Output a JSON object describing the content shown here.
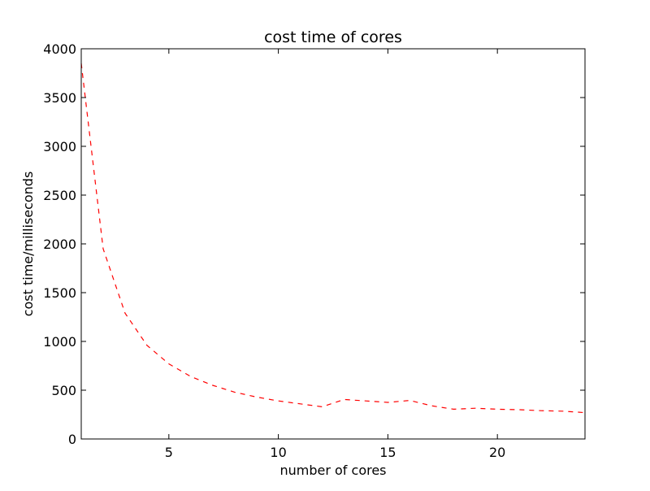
{
  "chart_data": {
    "type": "line",
    "title": "cost time of cores",
    "xlabel": "number of cores",
    "ylabel": "cost time/milliseconds",
    "xlim": [
      1,
      24
    ],
    "ylim": [
      0,
      4000
    ],
    "xticks": [
      5,
      10,
      15,
      20
    ],
    "yticks": [
      0,
      500,
      1000,
      1500,
      2000,
      2500,
      3000,
      3500,
      4000
    ],
    "grid": false,
    "legend": "none",
    "series": [
      {
        "color": "#ff0000",
        "line_style": "dashed",
        "x": [
          1,
          2,
          3,
          4,
          5,
          6,
          7,
          8,
          9,
          10,
          11,
          12,
          13,
          14,
          15,
          16,
          17,
          18,
          19,
          20,
          21,
          22,
          23,
          24
        ],
        "y": [
          3850,
          1950,
          1290,
          960,
          770,
          640,
          550,
          480,
          430,
          390,
          360,
          330,
          405,
          390,
          375,
          395,
          340,
          305,
          315,
          305,
          300,
          290,
          285,
          270
        ]
      }
    ]
  }
}
